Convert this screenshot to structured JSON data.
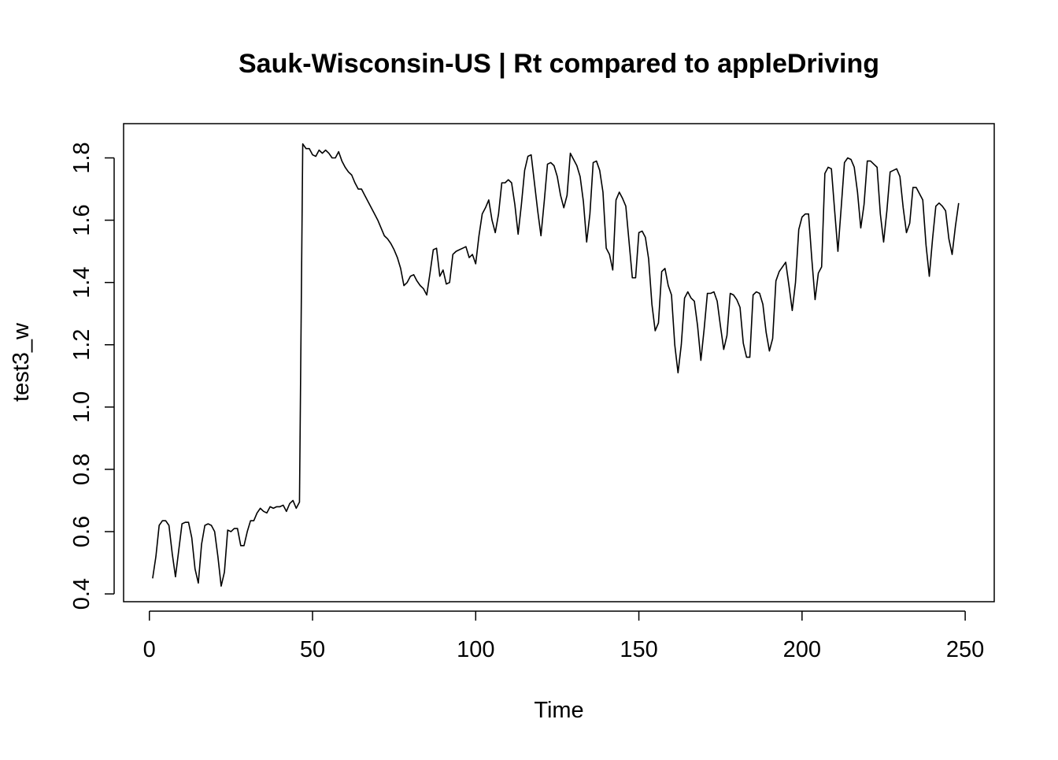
{
  "chart_data": {
    "type": "line",
    "title": "Sauk-Wisconsin-US | Rt compared to appleDriving",
    "xlabel": "Time",
    "ylabel": "test3_w",
    "xlim": [
      -7.9,
      258.9
    ],
    "ylim": [
      0.375,
      1.91
    ],
    "x_ticks": [
      0,
      50,
      100,
      150,
      200,
      250
    ],
    "y_ticks": [
      0.4,
      0.6,
      0.8,
      1.0,
      1.2,
      1.4,
      1.6,
      1.8
    ],
    "x_tick_labels": [
      "0",
      "50",
      "100",
      "150",
      "200",
      "250"
    ],
    "y_tick_labels": [
      "0.4",
      "0.6",
      "0.8",
      "1.0",
      "1.2",
      "1.4",
      "1.6",
      "1.8"
    ],
    "grid": false,
    "line_color": "#000000",
    "series": [
      {
        "x_start": 1,
        "x_step": 1,
        "values": [
          0.45,
          0.52,
          0.62,
          0.635,
          0.635,
          0.62,
          0.53,
          0.455,
          0.54,
          0.625,
          0.63,
          0.63,
          0.58,
          0.48,
          0.435,
          0.56,
          0.62,
          0.625,
          0.62,
          0.6,
          0.52,
          0.425,
          0.47,
          0.605,
          0.6,
          0.61,
          0.61,
          0.555,
          0.555,
          0.6,
          0.635,
          0.635,
          0.66,
          0.675,
          0.665,
          0.66,
          0.68,
          0.675,
          0.68,
          0.68,
          0.685,
          0.665,
          0.69,
          0.7,
          0.675,
          0.695,
          1.845,
          1.83,
          1.83,
          1.81,
          1.805,
          1.825,
          1.815,
          1.825,
          1.815,
          1.8,
          1.8,
          1.82,
          1.79,
          1.77,
          1.755,
          1.745,
          1.72,
          1.7,
          1.7,
          1.68,
          1.66,
          1.64,
          1.62,
          1.6,
          1.575,
          1.55,
          1.54,
          1.525,
          1.505,
          1.48,
          1.445,
          1.39,
          1.4,
          1.42,
          1.425,
          1.405,
          1.39,
          1.38,
          1.36,
          1.43,
          1.505,
          1.51,
          1.42,
          1.44,
          1.395,
          1.4,
          1.49,
          1.5,
          1.505,
          1.51,
          1.515,
          1.48,
          1.49,
          1.46,
          1.55,
          1.62,
          1.64,
          1.665,
          1.6,
          1.56,
          1.62,
          1.72,
          1.72,
          1.73,
          1.72,
          1.65,
          1.555,
          1.65,
          1.76,
          1.805,
          1.81,
          1.72,
          1.63,
          1.55,
          1.66,
          1.78,
          1.785,
          1.775,
          1.74,
          1.68,
          1.64,
          1.68,
          1.815,
          1.795,
          1.775,
          1.74,
          1.66,
          1.53,
          1.62,
          1.785,
          1.79,
          1.76,
          1.69,
          1.51,
          1.49,
          1.44,
          1.665,
          1.69,
          1.67,
          1.645,
          1.53,
          1.415,
          1.415,
          1.56,
          1.565,
          1.545,
          1.475,
          1.33,
          1.245,
          1.27,
          1.435,
          1.445,
          1.39,
          1.36,
          1.2,
          1.11,
          1.2,
          1.35,
          1.37,
          1.35,
          1.34,
          1.26,
          1.15,
          1.25,
          1.365,
          1.365,
          1.37,
          1.34,
          1.26,
          1.185,
          1.23,
          1.365,
          1.36,
          1.345,
          1.32,
          1.205,
          1.16,
          1.16,
          1.36,
          1.37,
          1.365,
          1.33,
          1.24,
          1.18,
          1.22,
          1.405,
          1.435,
          1.45,
          1.465,
          1.39,
          1.31,
          1.4,
          1.57,
          1.61,
          1.62,
          1.62,
          1.475,
          1.345,
          1.43,
          1.45,
          1.75,
          1.77,
          1.765,
          1.63,
          1.5,
          1.64,
          1.785,
          1.8,
          1.795,
          1.77,
          1.69,
          1.575,
          1.65,
          1.79,
          1.79,
          1.78,
          1.77,
          1.62,
          1.53,
          1.63,
          1.755,
          1.76,
          1.765,
          1.74,
          1.64,
          1.56,
          1.59,
          1.705,
          1.705,
          1.685,
          1.665,
          1.52,
          1.42,
          1.54,
          1.645,
          1.655,
          1.645,
          1.63,
          1.54,
          1.49,
          1.58,
          1.655
        ]
      }
    ]
  }
}
